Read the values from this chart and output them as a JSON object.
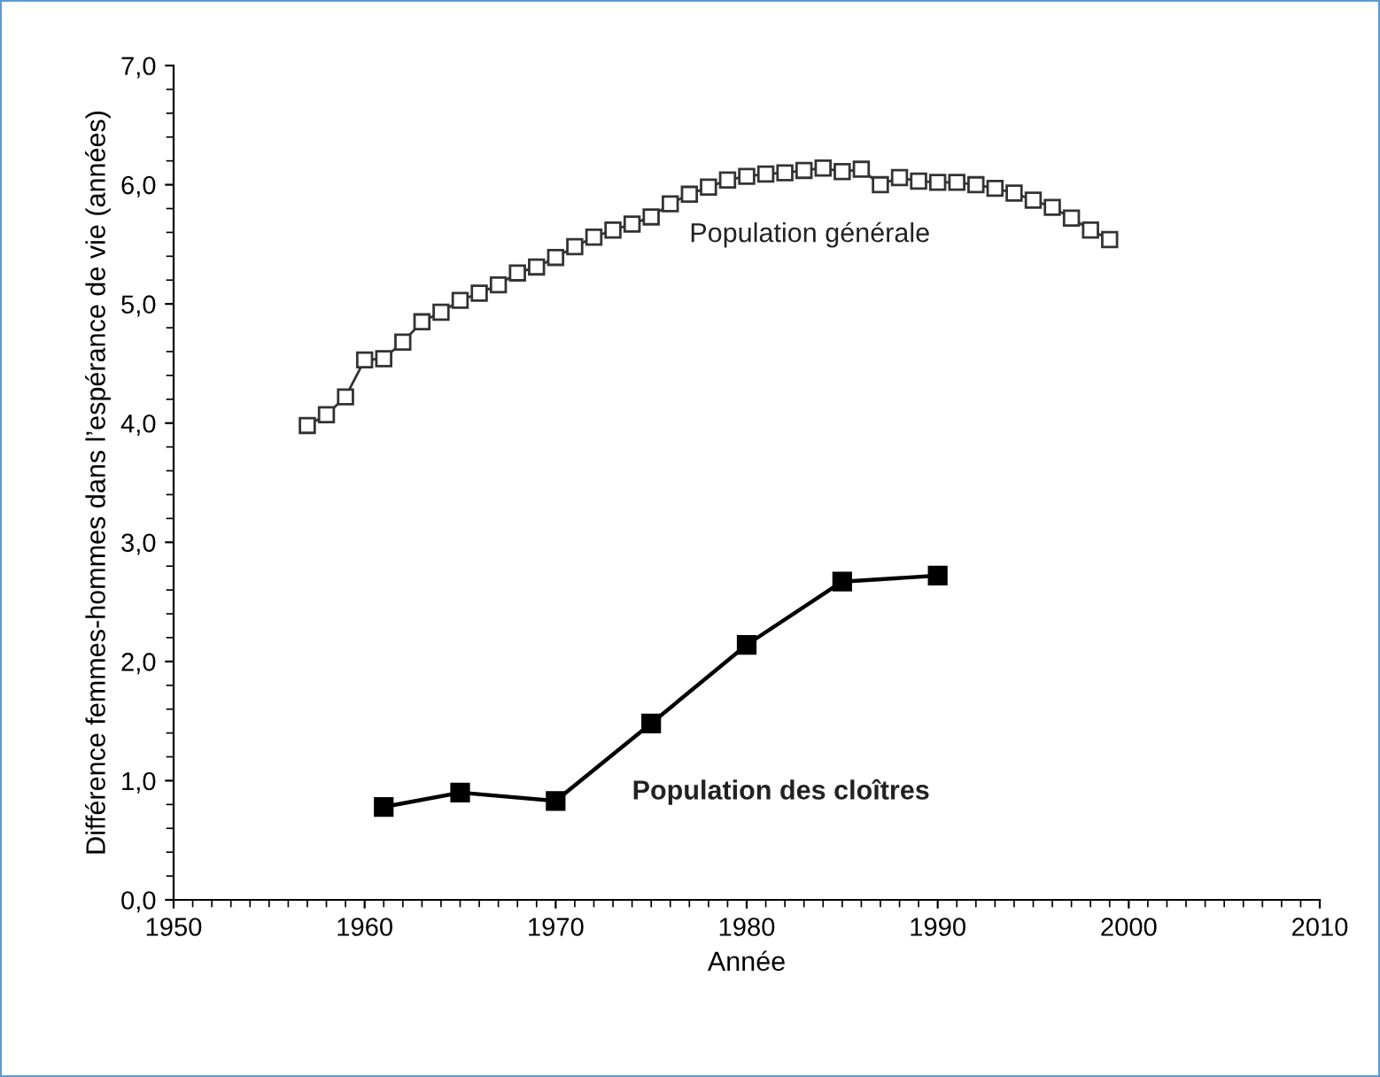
{
  "chart_data": {
    "type": "line",
    "xlabel": "Année",
    "ylabel": "Différence femmes-hommes dans l’espérance de vie (années)",
    "xlim": [
      1950,
      2010
    ],
    "xticks": [
      1950,
      1960,
      1970,
      1980,
      1990,
      2000,
      2010
    ],
    "ylim": [
      0,
      7
    ],
    "yticks": [
      {
        "value": 0,
        "label": "0,0"
      },
      {
        "value": 1,
        "label": "1,0"
      },
      {
        "value": 2,
        "label": "2,0"
      },
      {
        "value": 3,
        "label": "3,0"
      },
      {
        "value": 4,
        "label": "4,0"
      },
      {
        "value": 5,
        "label": "5,0"
      },
      {
        "value": 6,
        "label": "6,0"
      },
      {
        "value": 7,
        "label": "7,0"
      }
    ],
    "grid": false,
    "legend": false,
    "line_style": "solid",
    "series": [
      {
        "name": "Population générale",
        "color": "#333333",
        "marker": "square",
        "x": [
          1957,
          1958,
          1959,
          1960,
          1961,
          1962,
          1963,
          1964,
          1965,
          1966,
          1967,
          1968,
          1969,
          1970,
          1971,
          1972,
          1973,
          1974,
          1975,
          1976,
          1977,
          1978,
          1979,
          1980,
          1981,
          1982,
          1983,
          1984,
          1985,
          1986,
          1987,
          1988,
          1989,
          1990,
          1991,
          1992,
          1993,
          1994,
          1995,
          1996,
          1997,
          1998,
          1999
        ],
        "values": [
          3.98,
          4.07,
          4.22,
          4.53,
          4.54,
          4.68,
          4.85,
          4.93,
          5.03,
          5.09,
          5.16,
          5.26,
          5.31,
          5.39,
          5.48,
          5.56,
          5.62,
          5.67,
          5.73,
          5.84,
          5.92,
          5.98,
          6.04,
          6.07,
          6.09,
          6.1,
          6.12,
          6.14,
          6.11,
          6.13,
          6.0,
          6.06,
          6.03,
          6.02,
          6.02,
          6.0,
          5.97,
          5.93,
          5.87,
          5.81,
          5.72,
          5.62,
          5.54
        ]
      },
      {
        "name": "Population des cloîtres",
        "color": "#000000",
        "marker": "square",
        "x": [
          1961,
          1965,
          1970,
          1975,
          1980,
          1985,
          1990
        ],
        "values": [
          0.78,
          0.9,
          0.83,
          1.48,
          2.14,
          2.67,
          2.72
        ]
      }
    ]
  }
}
